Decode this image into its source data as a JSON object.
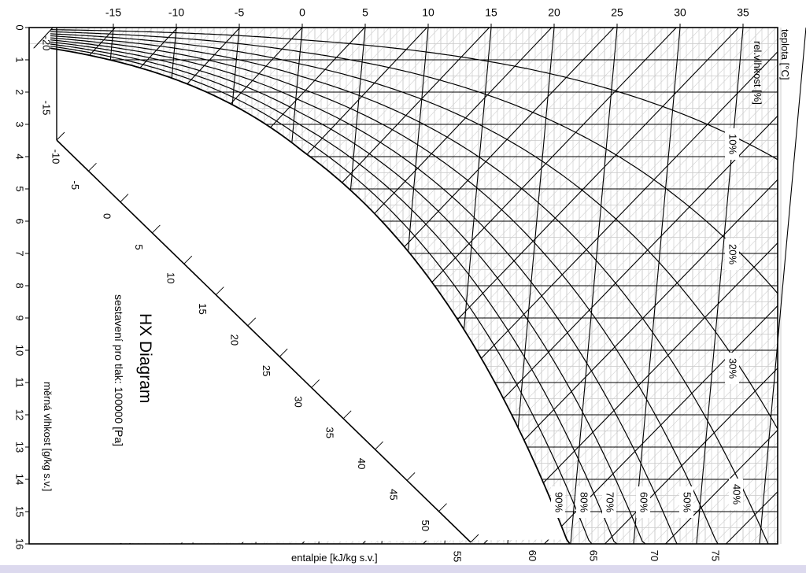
{
  "chart_data": {
    "type": "psychrometric",
    "title": "HX Diagram",
    "subtitle": "sestavení pro tlak: 100000 [Pa]",
    "pressure_pa": 100000,
    "y_axis": {
      "label": "měrná vlhkost [g/kg s.v.]",
      "range": [
        0,
        16
      ],
      "ticks": [
        "0",
        "1",
        "2",
        "3",
        "4",
        "5",
        "6",
        "7",
        "8",
        "9",
        "10",
        "11",
        "12",
        "13",
        "14",
        "15",
        "16"
      ]
    },
    "x_axis": {
      "label": "teplota [°C]",
      "range": [
        -20,
        38
      ],
      "ticks": [
        "-15",
        "-10",
        "-5",
        "0",
        "5",
        "10",
        "15",
        "20",
        "25",
        "30",
        "35"
      ]
    },
    "rh_axis": {
      "label": "rel.vlhkost [%]",
      "curves": [
        10,
        20,
        30,
        40,
        50,
        60,
        70,
        80,
        90,
        100
      ],
      "labels": [
        "10%",
        "20%",
        "30%",
        "40%",
        "50%",
        "60%",
        "70%",
        "80%",
        "90%"
      ]
    },
    "enthalpy_axis": {
      "label": "entalpie [kJ/kg s.v.]",
      "ticks": [
        "-20",
        "-15",
        "-10",
        "-5",
        "0",
        "5",
        "10",
        "15",
        "20",
        "25",
        "30",
        "35",
        "40",
        "45",
        "50",
        "55",
        "60",
        "65",
        "70",
        "75"
      ]
    },
    "grid": true
  }
}
